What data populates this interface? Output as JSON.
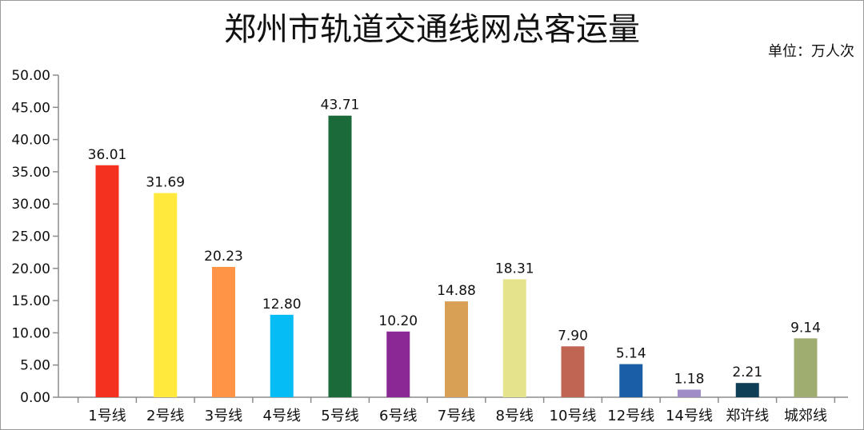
{
  "chart_data": {
    "type": "bar",
    "title": "郑州市轨道交通线网总客运量",
    "unit": "单位：万人次",
    "categories": [
      "1号线",
      "2号线",
      "3号线",
      "4号线",
      "5号线",
      "6号线",
      "7号线",
      "8号线",
      "10号线",
      "12号线",
      "14号线",
      "郑许线",
      "城郊线"
    ],
    "values": [
      36.01,
      31.69,
      20.23,
      12.8,
      43.71,
      10.2,
      14.88,
      18.31,
      7.9,
      5.14,
      1.18,
      2.21,
      9.14
    ],
    "value_labels": [
      "36.01",
      "31.69",
      "20.23",
      "12.80",
      "43.71",
      "10.20",
      "14.88",
      "18.31",
      "7.90",
      "5.14",
      "1.18",
      "2.21",
      "9.14"
    ],
    "colors": [
      "#f4301e",
      "#ffe93d",
      "#ff9346",
      "#06bcf4",
      "#1b6a3a",
      "#8a2895",
      "#d8a055",
      "#e6e38d",
      "#c06454",
      "#1a5ea8",
      "#a08dc8",
      "#0f3f56",
      "#a0ad70"
    ],
    "ylim": [
      0,
      50
    ],
    "yticks": [
      "0.00",
      "5.00",
      "10.00",
      "15.00",
      "20.00",
      "25.00",
      "30.00",
      "35.00",
      "40.00",
      "45.00",
      "50.00"
    ],
    "ytick_values": [
      0,
      5,
      10,
      15,
      20,
      25,
      30,
      35,
      40,
      45,
      50
    ],
    "grid": false,
    "legend": "none"
  }
}
